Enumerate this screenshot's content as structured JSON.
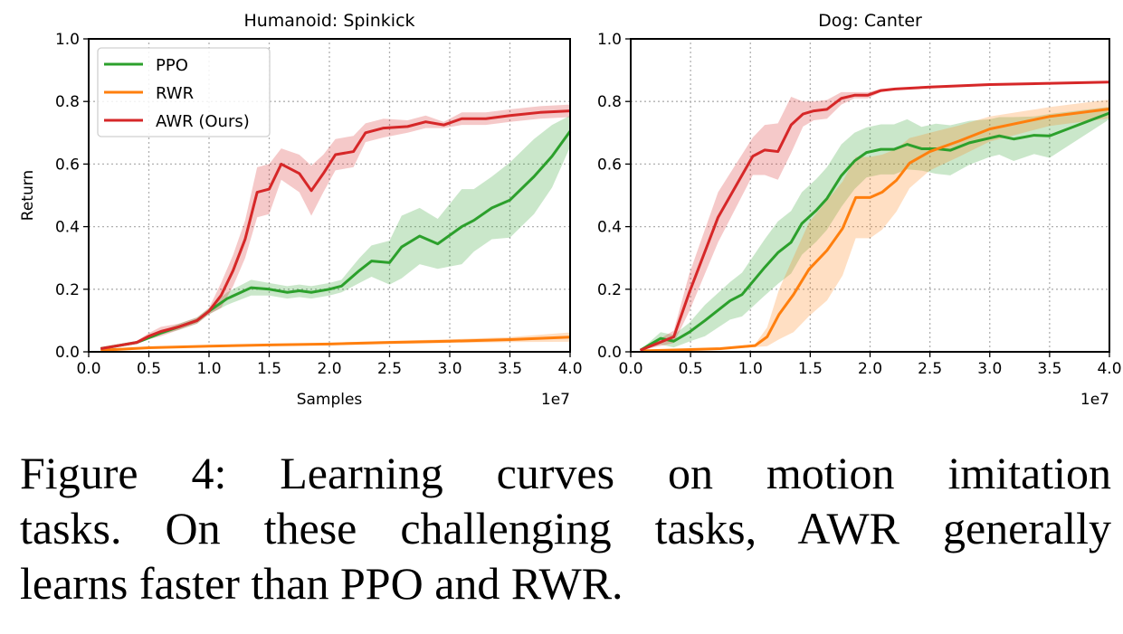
{
  "colors": {
    "PPO": "#2ca02c",
    "RWR": "#ff7f0e",
    "AWR (Ours)": "#d62728"
  },
  "legend": {
    "placement": "upper-left",
    "entries": [
      "PPO",
      "RWR",
      "AWR (Ours)"
    ]
  },
  "chart_data": [
    {
      "type": "line",
      "title": "Humanoid: Spinkick",
      "xlabel": "Samples",
      "ylabel": "Return",
      "x_offset_label": "1e7",
      "xlim": [
        0,
        4.0
      ],
      "ylim": [
        0,
        1.0
      ],
      "xticks": [
        "0.0",
        "0.5",
        "1.0",
        "1.5",
        "2.0",
        "2.5",
        "3.0",
        "3.5",
        "4.0"
      ],
      "yticks": [
        "0.0",
        "0.2",
        "0.4",
        "0.6",
        "0.8",
        "1.0"
      ],
      "grid": true,
      "series": [
        {
          "name": "PPO",
          "x": [
            0.1,
            0.25,
            0.4,
            0.5,
            0.6,
            0.75,
            0.9,
            1.0,
            1.15,
            1.35,
            1.5,
            1.65,
            1.75,
            1.85,
            2.0,
            2.1,
            2.25,
            2.35,
            2.5,
            2.6,
            2.75,
            2.9,
            3.1,
            3.2,
            3.35,
            3.5,
            3.7,
            3.85,
            4.0
          ],
          "y": [
            0.01,
            0.02,
            0.03,
            0.045,
            0.06,
            0.08,
            0.1,
            0.13,
            0.17,
            0.205,
            0.2,
            0.19,
            0.195,
            0.19,
            0.2,
            0.21,
            0.26,
            0.29,
            0.285,
            0.335,
            0.37,
            0.345,
            0.4,
            0.42,
            0.46,
            0.485,
            0.56,
            0.625,
            0.705
          ],
          "spread": [
            0.005,
            0.005,
            0.005,
            0.005,
            0.005,
            0.01,
            0.01,
            0.01,
            0.02,
            0.025,
            0.02,
            0.02,
            0.02,
            0.02,
            0.02,
            0.02,
            0.04,
            0.05,
            0.07,
            0.1,
            0.09,
            0.08,
            0.12,
            0.1,
            0.1,
            0.12,
            0.12,
            0.1,
            0.05
          ]
        },
        {
          "name": "RWR",
          "x": [
            0.1,
            0.5,
            1.0,
            1.5,
            2.0,
            2.5,
            3.0,
            3.5,
            4.0
          ],
          "y": [
            0.005,
            0.013,
            0.018,
            0.022,
            0.025,
            0.03,
            0.034,
            0.039,
            0.047
          ],
          "spread": [
            0,
            0.002,
            0.003,
            0.003,
            0.004,
            0.005,
            0.006,
            0.008,
            0.015
          ]
        },
        {
          "name": "AWR (Ours)",
          "x": [
            0.1,
            0.25,
            0.4,
            0.5,
            0.6,
            0.75,
            0.9,
            1.0,
            1.1,
            1.2,
            1.3,
            1.4,
            1.5,
            1.6,
            1.75,
            1.85,
            1.95,
            2.05,
            2.2,
            2.3,
            2.45,
            2.65,
            2.8,
            2.95,
            3.1,
            3.3,
            3.5,
            3.75,
            4.0
          ],
          "y": [
            0.01,
            0.02,
            0.03,
            0.05,
            0.065,
            0.08,
            0.1,
            0.13,
            0.18,
            0.26,
            0.36,
            0.51,
            0.52,
            0.6,
            0.57,
            0.515,
            0.57,
            0.63,
            0.64,
            0.7,
            0.715,
            0.72,
            0.735,
            0.725,
            0.745,
            0.745,
            0.755,
            0.765,
            0.77
          ],
          "spread": [
            0.005,
            0.005,
            0.005,
            0.01,
            0.015,
            0.01,
            0.01,
            0.01,
            0.04,
            0.05,
            0.06,
            0.08,
            0.08,
            0.05,
            0.06,
            0.08,
            0.06,
            0.05,
            0.05,
            0.03,
            0.03,
            0.02,
            0.02,
            0.01,
            0.02,
            0.02,
            0.02,
            0.02,
            0.02
          ]
        }
      ]
    },
    {
      "type": "line",
      "title": "Dog: Canter",
      "xlabel": "",
      "ylabel": "",
      "x_offset_label": "1e7",
      "xlim": [
        0,
        4.0
      ],
      "ylim": [
        0,
        1.0
      ],
      "xticks": [
        "0.0",
        "0.5",
        "1.0",
        "1.5",
        "2.0",
        "2.5",
        "3.0",
        "3.5",
        "4.0"
      ],
      "yticks": [
        "0.0",
        "0.2",
        "0.4",
        "0.6",
        "0.8",
        "1.0"
      ],
      "grid": true,
      "series": [
        {
          "name": "PPO",
          "x": [
            0.08,
            0.25,
            0.36,
            0.49,
            0.62,
            0.83,
            0.93,
            1.12,
            1.23,
            1.34,
            1.43,
            1.55,
            1.64,
            1.76,
            1.87,
            1.97,
            2.09,
            2.2,
            2.31,
            2.43,
            2.55,
            2.67,
            2.83,
            3.0,
            3.08,
            3.2,
            3.37,
            3.5,
            4.0
          ],
          "y": [
            0.005,
            0.043,
            0.034,
            0.063,
            0.1,
            0.163,
            0.183,
            0.27,
            0.317,
            0.35,
            0.41,
            0.452,
            0.49,
            0.563,
            0.61,
            0.637,
            0.647,
            0.647,
            0.663,
            0.649,
            0.649,
            0.644,
            0.668,
            0.683,
            0.69,
            0.68,
            0.692,
            0.69,
            0.763
          ],
          "spread": [
            0,
            0.02,
            0.02,
            0.03,
            0.05,
            0.06,
            0.07,
            0.09,
            0.1,
            0.1,
            0.1,
            0.1,
            0.1,
            0.1,
            0.09,
            0.08,
            0.08,
            0.08,
            0.08,
            0.07,
            0.08,
            0.08,
            0.07,
            0.06,
            0.06,
            0.07,
            0.06,
            0.07,
            0.02
          ]
        },
        {
          "name": "RWR",
          "x": [
            0.08,
            0.75,
            1.04,
            1.14,
            1.24,
            1.36,
            1.49,
            1.64,
            1.77,
            1.88,
            2.0,
            2.1,
            2.22,
            2.33,
            2.5,
            2.74,
            3.0,
            3.5,
            4.0
          ],
          "y": [
            0.003,
            0.01,
            0.02,
            0.048,
            0.12,
            0.183,
            0.264,
            0.324,
            0.394,
            0.493,
            0.493,
            0.51,
            0.548,
            0.603,
            0.64,
            0.673,
            0.712,
            0.752,
            0.776
          ],
          "spread": [
            0,
            0.002,
            0.005,
            0.03,
            0.08,
            0.12,
            0.15,
            0.16,
            0.15,
            0.13,
            0.13,
            0.12,
            0.1,
            0.08,
            0.06,
            0.05,
            0.04,
            0.03,
            0.03
          ]
        },
        {
          "name": "AWR (Ours)",
          "x": [
            0.08,
            0.36,
            0.49,
            0.73,
            1.02,
            1.12,
            1.23,
            1.34,
            1.44,
            1.53,
            1.64,
            1.76,
            1.87,
            1.98,
            2.09,
            2.21,
            2.5,
            3.0,
            4.0
          ],
          "y": [
            0.005,
            0.048,
            0.19,
            0.43,
            0.625,
            0.645,
            0.64,
            0.725,
            0.76,
            0.77,
            0.775,
            0.81,
            0.82,
            0.82,
            0.835,
            0.84,
            0.846,
            0.854,
            0.862
          ],
          "spread": [
            0,
            0.02,
            0.06,
            0.08,
            0.06,
            0.08,
            0.09,
            0.09,
            0.04,
            0.03,
            0.03,
            0.02,
            0.01,
            0.01,
            0.005,
            0.003,
            0.003,
            0.003,
            0.003
          ]
        }
      ]
    }
  ],
  "caption": {
    "lines": [
      "Figure 4:  Learning curves on motion imitation",
      "tasks. On these challenging tasks, AWR generally",
      "learns faster than PPO and RWR."
    ]
  }
}
